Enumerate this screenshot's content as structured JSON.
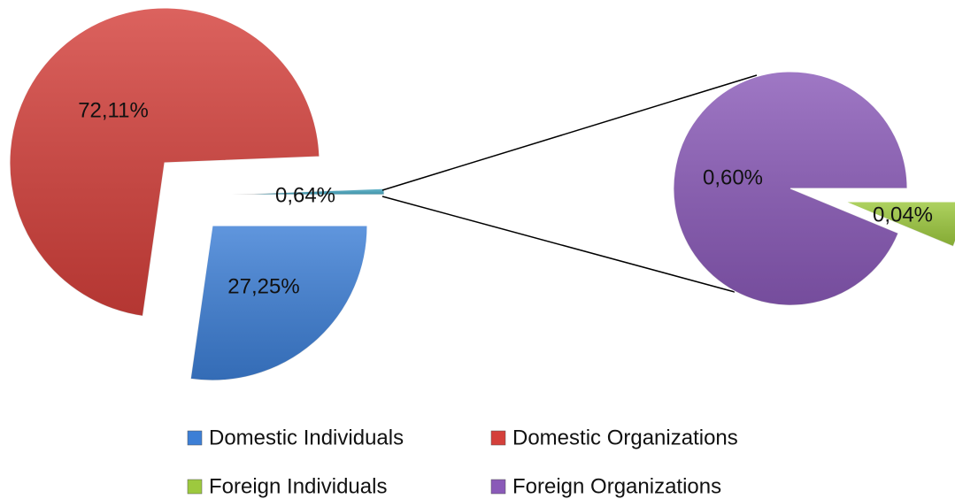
{
  "chart_data": {
    "type": "pie-of-pie",
    "main": {
      "categories": [
        "Domestic Individuals",
        "Domestic Organizations"
      ],
      "values": [
        27.25,
        72.11
      ],
      "value_labels": [
        "27,25%",
        "72,11%"
      ],
      "colors": [
        "#3d7fd6",
        "#d4403b"
      ]
    },
    "combined": {
      "value": 0.64,
      "value_label": "0,64%",
      "color": "#4bacc6"
    },
    "secondary": {
      "categories": [
        "Foreign Individuals",
        "Foreign Organizations"
      ],
      "values": [
        0.04,
        0.6
      ],
      "value_labels": [
        "0,04%",
        "0,60%"
      ],
      "colors": [
        "#9dc93e",
        "#8a5ab8"
      ]
    }
  }
}
